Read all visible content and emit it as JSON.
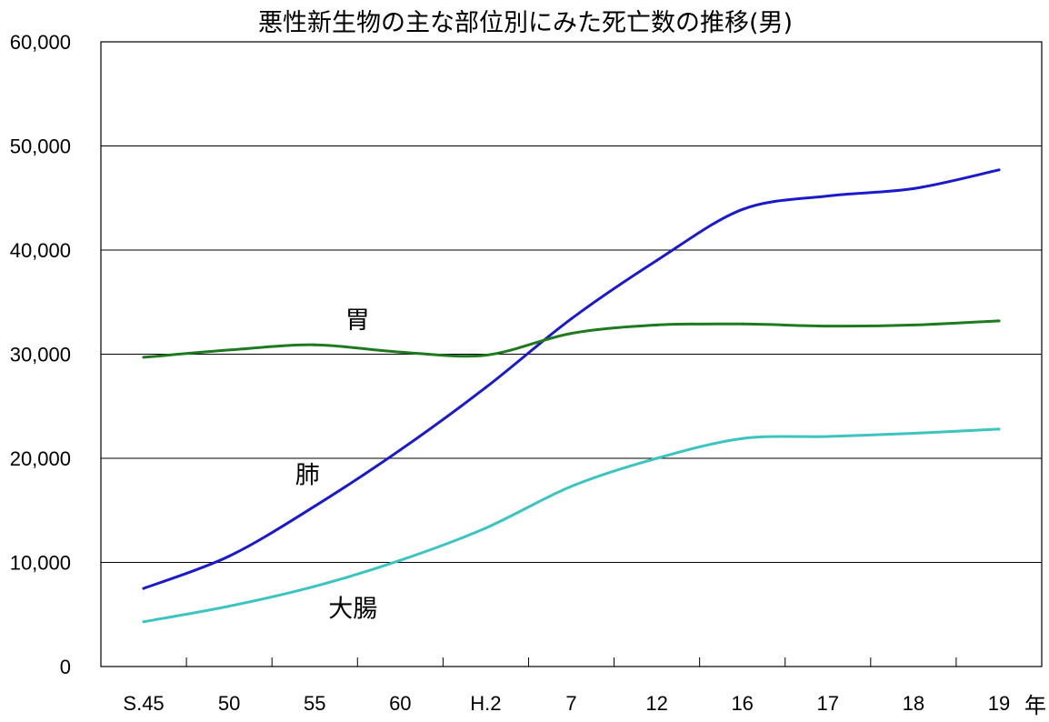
{
  "chart_data": {
    "type": "line",
    "title": "悪性新生物の主な部位別にみた死亡数の推移(男)",
    "xlabel": "",
    "x_unit": "年",
    "ylabel": "",
    "categories": [
      "S.45",
      "50",
      "55",
      "60",
      "H.2",
      "7",
      "12",
      "16",
      "17",
      "18",
      "19"
    ],
    "y_ticks": [
      "0",
      "10,000",
      "20,000",
      "30,000",
      "40,000",
      "50,000",
      "60,000"
    ],
    "ylim": [
      0,
      60000
    ],
    "grid": true,
    "legend": "none",
    "series": [
      {
        "name": "肺",
        "color": "#1a1acc",
        "values": [
          7500,
          10600,
          15400,
          20800,
          26800,
          33400,
          39000,
          43900,
          45200,
          45900,
          47700
        ]
      },
      {
        "name": "胃",
        "color": "#1e7a1e",
        "values": [
          29700,
          30400,
          30900,
          30200,
          29900,
          32000,
          32800,
          32900,
          32700,
          32800,
          33200
        ]
      },
      {
        "name": "大腸",
        "color": "#3cc4c0",
        "values": [
          4300,
          5800,
          7700,
          10200,
          13300,
          17300,
          20000,
          21900,
          22100,
          22400,
          22800
        ]
      }
    ]
  }
}
